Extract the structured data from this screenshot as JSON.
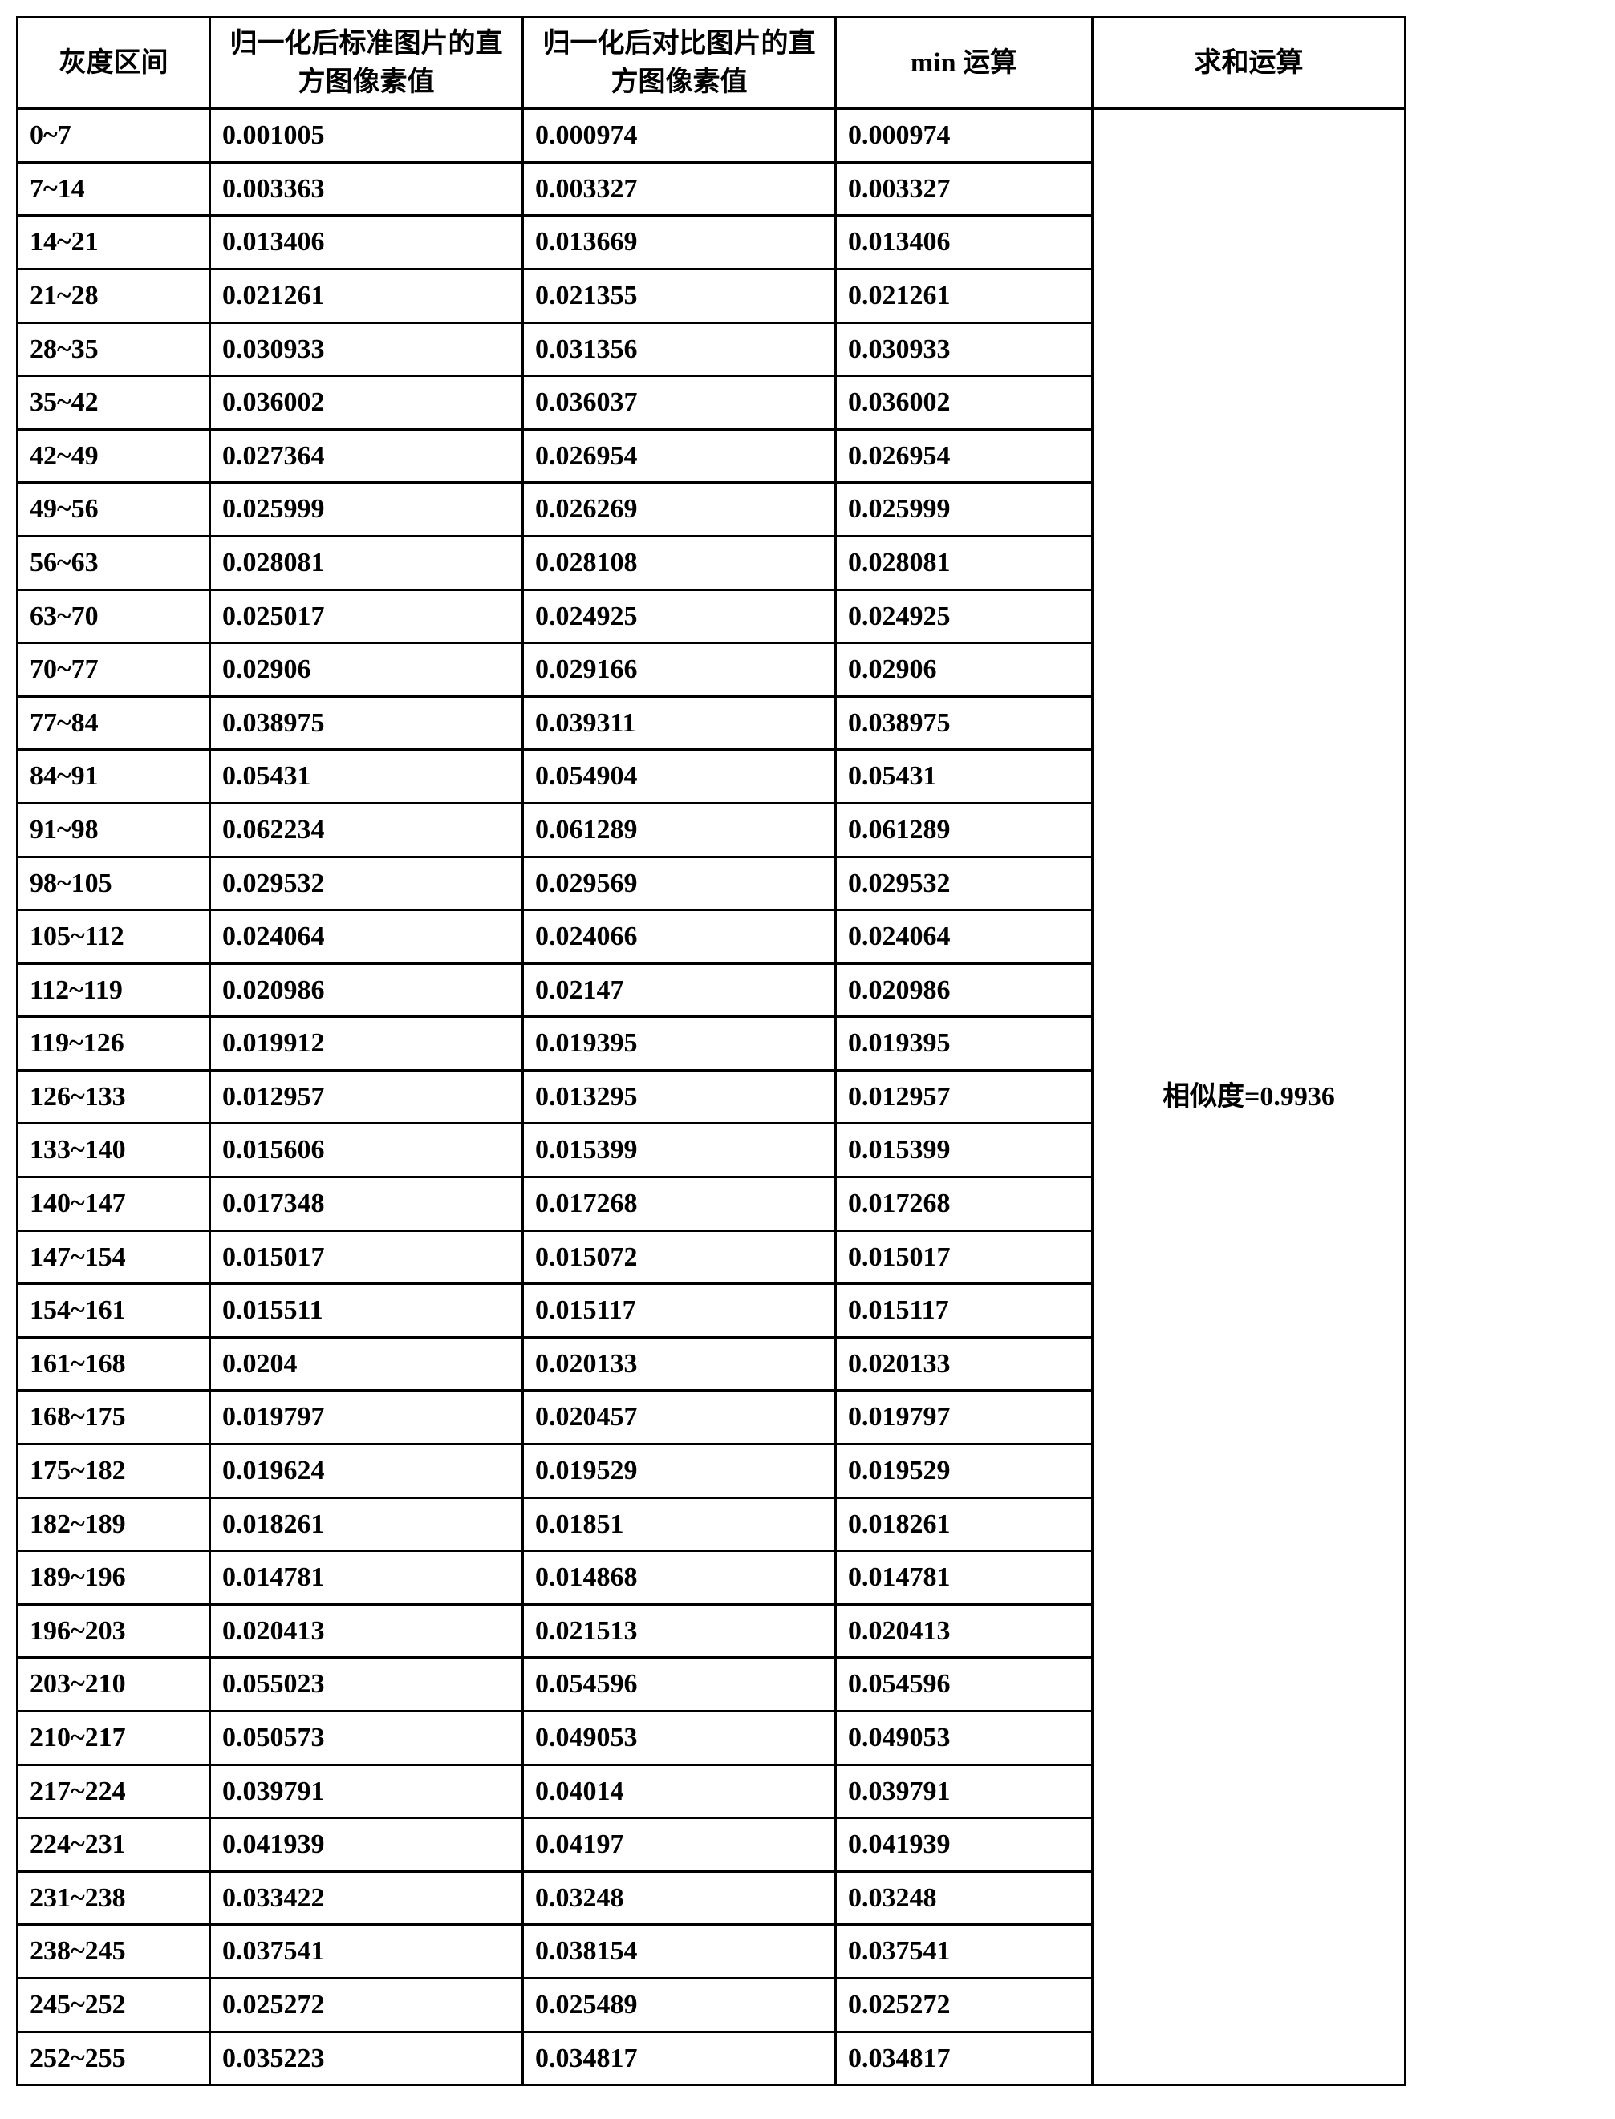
{
  "table": {
    "headers": {
      "range": "灰度区间",
      "std": "归一化后标准图片的直方图像素值",
      "cmp": "归一化后对比图片的直方图像素值",
      "min": "min 运算",
      "sum": "求和运算"
    },
    "sum_result": "相似度=0.9936",
    "rows": [
      {
        "range": "0~7",
        "std": "0.001005",
        "cmp": "0.000974",
        "min": "0.000974"
      },
      {
        "range": "7~14",
        "std": "0.003363",
        "cmp": "0.003327",
        "min": "0.003327"
      },
      {
        "range": "14~21",
        "std": "0.013406",
        "cmp": "0.013669",
        "min": "0.013406"
      },
      {
        "range": "21~28",
        "std": "0.021261",
        "cmp": "0.021355",
        "min": "0.021261"
      },
      {
        "range": "28~35",
        "std": "0.030933",
        "cmp": "0.031356",
        "min": "0.030933"
      },
      {
        "range": "35~42",
        "std": "0.036002",
        "cmp": "0.036037",
        "min": "0.036002"
      },
      {
        "range": "42~49",
        "std": "0.027364",
        "cmp": "0.026954",
        "min": "0.026954"
      },
      {
        "range": "49~56",
        "std": "0.025999",
        "cmp": "0.026269",
        "min": "0.025999"
      },
      {
        "range": "56~63",
        "std": "0.028081",
        "cmp": "0.028108",
        "min": "0.028081"
      },
      {
        "range": "63~70",
        "std": "0.025017",
        "cmp": "0.024925",
        "min": "0.024925"
      },
      {
        "range": "70~77",
        "std": "0.02906",
        "cmp": "0.029166",
        "min": "0.02906"
      },
      {
        "range": "77~84",
        "std": "0.038975",
        "cmp": "0.039311",
        "min": "0.038975"
      },
      {
        "range": "84~91",
        "std": "0.05431",
        "cmp": "0.054904",
        "min": "0.05431"
      },
      {
        "range": "91~98",
        "std": "0.062234",
        "cmp": "0.061289",
        "min": "0.061289"
      },
      {
        "range": "98~105",
        "std": "0.029532",
        "cmp": "0.029569",
        "min": "0.029532"
      },
      {
        "range": "105~112",
        "std": "0.024064",
        "cmp": "0.024066",
        "min": "0.024064"
      },
      {
        "range": "112~119",
        "std": "0.020986",
        "cmp": "0.02147",
        "min": "0.020986"
      },
      {
        "range": "119~126",
        "std": "0.019912",
        "cmp": "0.019395",
        "min": "0.019395"
      },
      {
        "range": "126~133",
        "std": "0.012957",
        "cmp": "0.013295",
        "min": "0.012957"
      },
      {
        "range": "133~140",
        "std": "0.015606",
        "cmp": "0.015399",
        "min": "0.015399"
      },
      {
        "range": "140~147",
        "std": "0.017348",
        "cmp": "0.017268",
        "min": "0.017268"
      },
      {
        "range": "147~154",
        "std": "0.015017",
        "cmp": "0.015072",
        "min": "0.015017"
      },
      {
        "range": "154~161",
        "std": "0.015511",
        "cmp": "0.015117",
        "min": "0.015117"
      },
      {
        "range": "161~168",
        "std": "0.0204",
        "cmp": "0.020133",
        "min": "0.020133"
      },
      {
        "range": "168~175",
        "std": "0.019797",
        "cmp": "0.020457",
        "min": "0.019797"
      },
      {
        "range": "175~182",
        "std": "0.019624",
        "cmp": "0.019529",
        "min": "0.019529"
      },
      {
        "range": "182~189",
        "std": "0.018261",
        "cmp": "0.01851",
        "min": "0.018261"
      },
      {
        "range": "189~196",
        "std": "0.014781",
        "cmp": "0.014868",
        "min": "0.014781"
      },
      {
        "range": "196~203",
        "std": "0.020413",
        "cmp": "0.021513",
        "min": "0.020413"
      },
      {
        "range": "203~210",
        "std": "0.055023",
        "cmp": "0.054596",
        "min": "0.054596"
      },
      {
        "range": "210~217",
        "std": "0.050573",
        "cmp": "0.049053",
        "min": "0.049053"
      },
      {
        "range": "217~224",
        "std": "0.039791",
        "cmp": "0.04014",
        "min": "0.039791"
      },
      {
        "range": "224~231",
        "std": "0.041939",
        "cmp": "0.04197",
        "min": "0.041939"
      },
      {
        "range": "231~238",
        "std": "0.033422",
        "cmp": "0.03248",
        "min": "0.03248"
      },
      {
        "range": "238~245",
        "std": "0.037541",
        "cmp": "0.038154",
        "min": "0.037541"
      },
      {
        "range": "245~252",
        "std": "0.025272",
        "cmp": "0.025489",
        "min": "0.025272"
      },
      {
        "range": "252~255",
        "std": "0.035223",
        "cmp": "0.034817",
        "min": "0.034817"
      }
    ],
    "style": {
      "border_color": "#000000",
      "border_width": 3,
      "background_color": "#ffffff",
      "font_size": 34,
      "font_family": "SimSun",
      "col_widths": {
        "range": 240,
        "std": 390,
        "cmp": 390,
        "min": 320,
        "sum": 390
      }
    }
  }
}
